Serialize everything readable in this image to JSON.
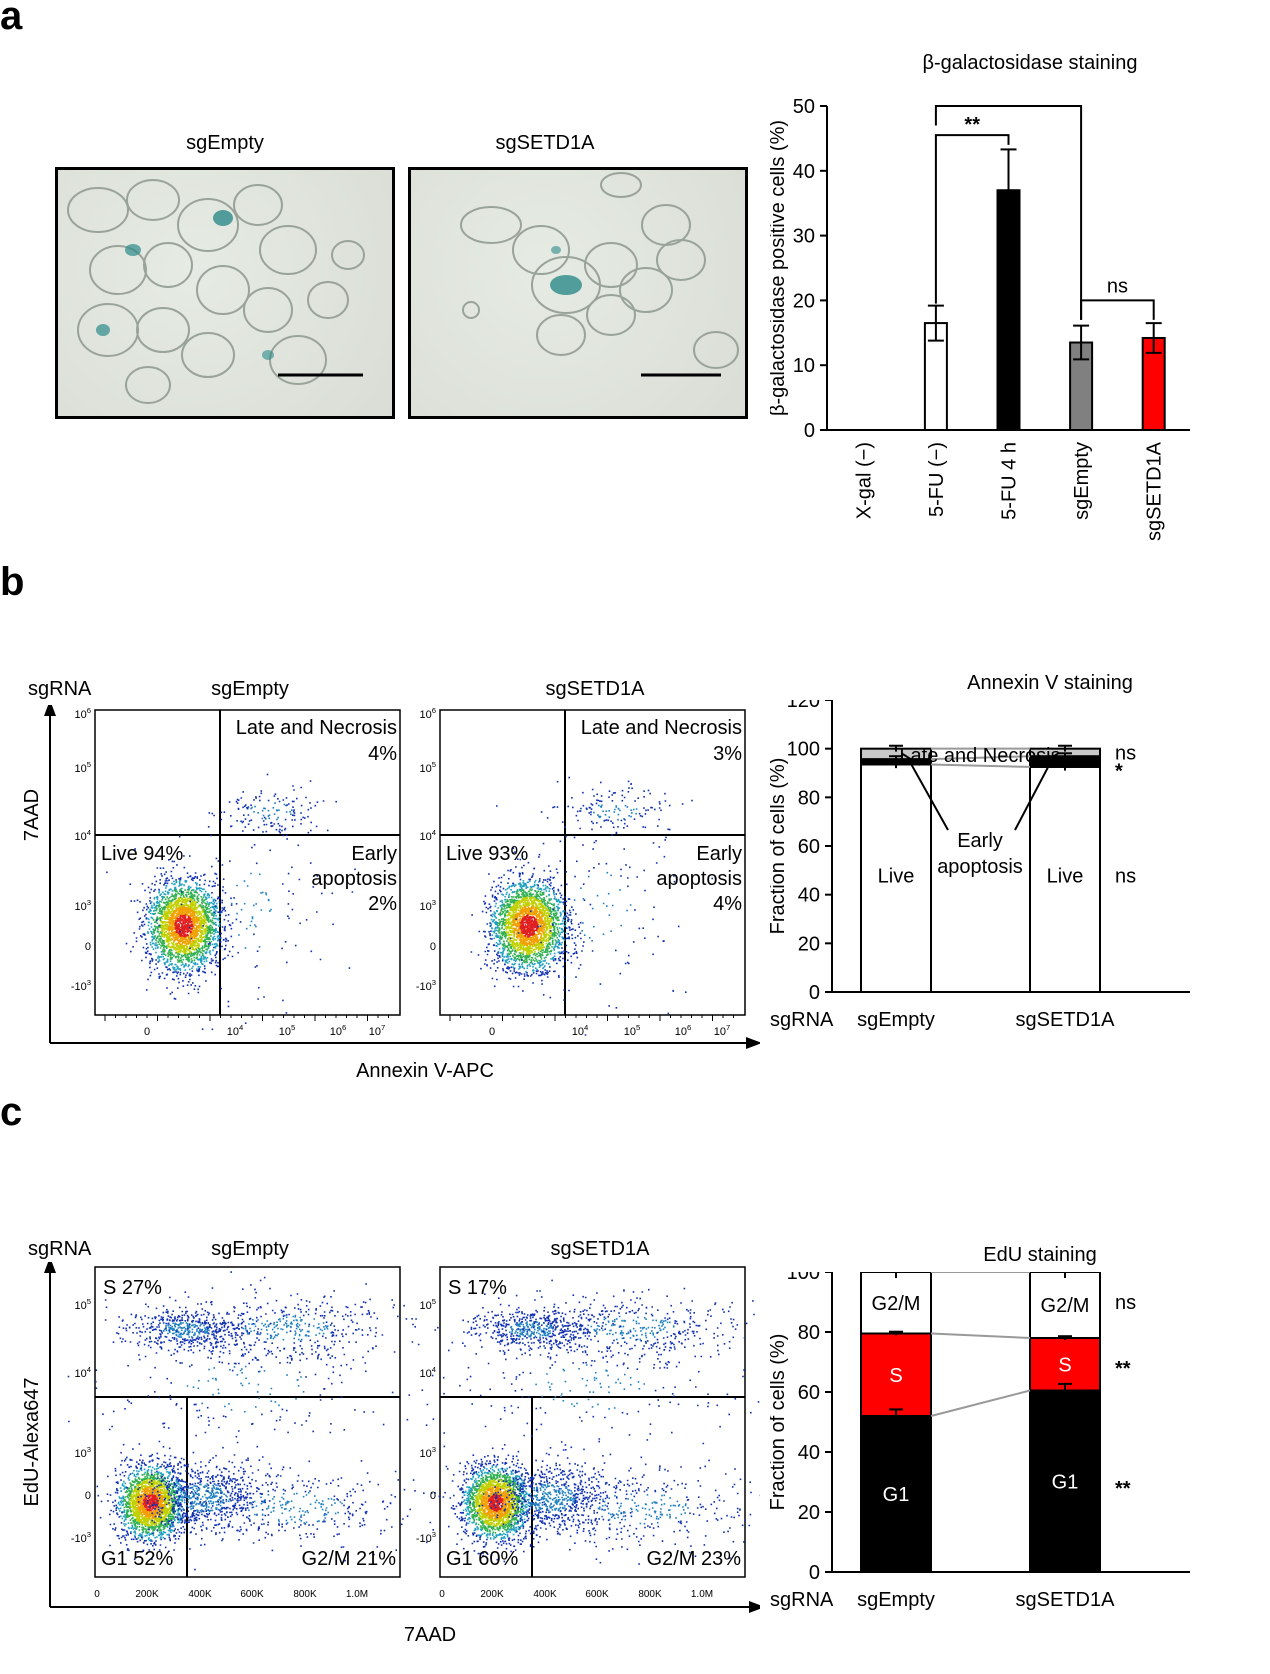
{
  "panels": {
    "a": "a",
    "b": "b",
    "c": "c"
  },
  "panel_a": {
    "micrographs": [
      {
        "title": "sgEmpty"
      },
      {
        "title": "sgSETD1A"
      }
    ],
    "chart_data": {
      "type": "bar",
      "title": "β-galactosidase staining",
      "ylabel": "β-galactosidase positive cells (%)",
      "ylim": [
        0,
        50
      ],
      "yticks": [
        0,
        10,
        20,
        30,
        40,
        50
      ],
      "categories": [
        "X-gal (−)",
        "5-FU (−)",
        "5-FU 4 h",
        "sgEmpty",
        "sgSETD1A"
      ],
      "values": [
        0,
        16.5,
        37,
        13.5,
        14.2
      ],
      "errors": [
        0,
        2.7,
        6.3,
        2.6,
        2.3
      ],
      "colors": [
        "#ffffff",
        "#ffffff",
        "#000000",
        "#808080",
        "#ff0000"
      ],
      "significance": [
        {
          "label": "**",
          "from": "5-FU (−)",
          "to": "5-FU 4 h"
        },
        {
          "label": "ns",
          "from": "5-FU (−)",
          "to": "sgEmpty"
        },
        {
          "label": "ns",
          "from": "sgEmpty",
          "to": "sgSETD1A"
        }
      ]
    }
  },
  "panel_b": {
    "row_label": "sgRNA",
    "flow_plots": [
      {
        "title": "sgEmpty",
        "late": "Late and Necrosis",
        "late_pct": "4%",
        "live": "Live 94%",
        "early1": "Early",
        "early2": "apoptosis",
        "early_pct": "2%"
      },
      {
        "title": "sgSETD1A",
        "late": "Late and Necrosis",
        "late_pct": "3%",
        "live": "Live 93%",
        "early1": "Early",
        "early2": "apoptosis",
        "early_pct": "4%"
      }
    ],
    "y_axis": "7AAD",
    "x_axis": "Annexin V-APC",
    "y_ticks": [
      "10^6",
      "10^5",
      "10^4",
      "10^3",
      "0",
      "-10^3"
    ],
    "x_ticks": [
      "0",
      "10^4",
      "10^5",
      "10^6",
      "10^7"
    ],
    "chart_data": {
      "type": "bar",
      "stacked": true,
      "title": "Annexin V staining",
      "ylabel": "Fraction of cells (%)",
      "xlabel_prefix": "sgRNA",
      "ylim": [
        0,
        120
      ],
      "yticks": [
        0,
        20,
        40,
        60,
        80,
        100,
        120
      ],
      "categories": [
        "sgEmpty",
        "sgSETD1A"
      ],
      "series": [
        {
          "name": "Live",
          "values": [
            93.5,
            92.5
          ],
          "color": "#ffffff"
        },
        {
          "name": "Early apoptosis",
          "values": [
            2.2,
            4.4
          ],
          "color": "#000000"
        },
        {
          "name": "Late and Necrosis",
          "values": [
            4.3,
            3.1
          ],
          "color": "#c8c8c8"
        }
      ],
      "annotations": {
        "late": "Late and Necrosis",
        "early1": "Early",
        "early2": "apoptosis",
        "live": "Live"
      },
      "significance": [
        "ns",
        "*",
        "ns"
      ]
    }
  },
  "panel_c": {
    "row_label": "sgRNA",
    "flow_plots": [
      {
        "title": "sgEmpty",
        "s": "S 27%",
        "g1": "G1 52%",
        "g2m": "G2/M 21%"
      },
      {
        "title": "sgSETD1A",
        "s": "S 17%",
        "g1": "G1 60%",
        "g2m": "G2/M 23%"
      }
    ],
    "y_axis": "EdU-Alexa647",
    "x_axis": "7AAD",
    "y_ticks": [
      "10^5",
      "10^4",
      "10^3",
      "0",
      "-10^3"
    ],
    "x_ticks": [
      "0",
      "200K",
      "400K",
      "600K",
      "800K",
      "1.0M"
    ],
    "chart_data": {
      "type": "bar",
      "stacked": true,
      "title": "EdU staining",
      "ylabel": "Fraction of cells (%)",
      "xlabel_prefix": "sgRNA",
      "ylim": [
        0,
        100
      ],
      "yticks": [
        0,
        20,
        40,
        60,
        80,
        100
      ],
      "categories": [
        "sgEmpty",
        "sgSETD1A"
      ],
      "series": [
        {
          "name": "G1",
          "values": [
            52,
            60.5
          ],
          "color": "#000000"
        },
        {
          "name": "S",
          "values": [
            27.5,
            17.5
          ],
          "color": "#ff0000"
        },
        {
          "name": "G2/M",
          "values": [
            20.5,
            22
          ],
          "color": "#ffffff"
        }
      ],
      "significance": [
        "ns",
        "**",
        "**"
      ]
    }
  }
}
